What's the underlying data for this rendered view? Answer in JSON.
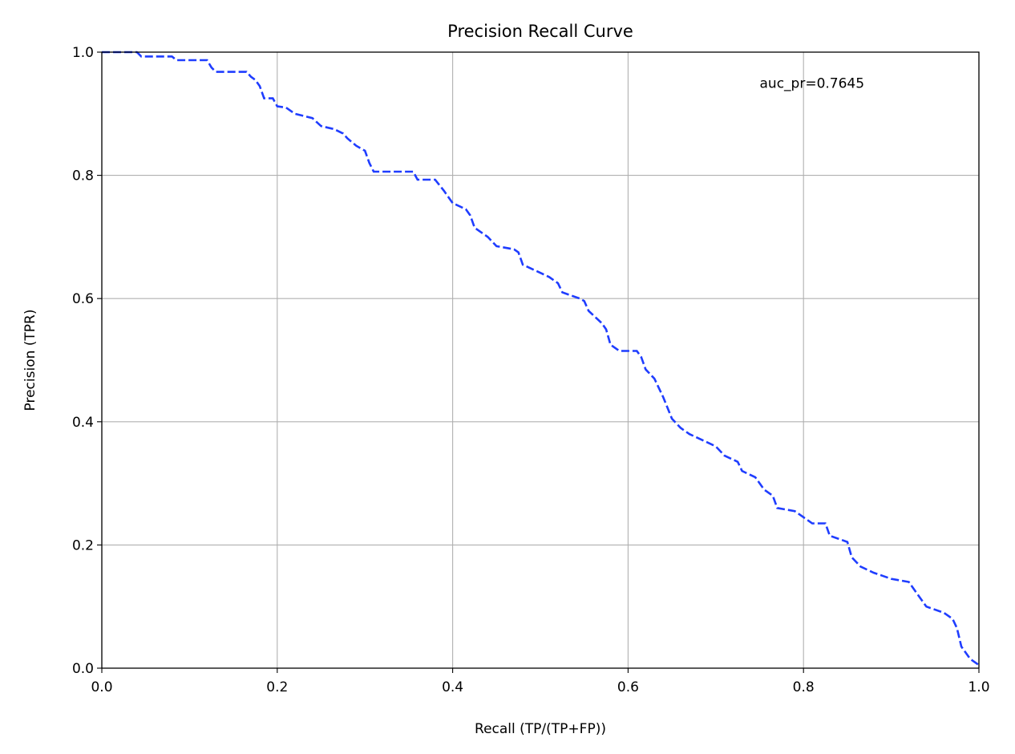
{
  "chart_data": {
    "type": "line",
    "title": "Precision Recall Curve",
    "xlabel": "Recall (TP/(TP+FP))",
    "ylabel": "Precision (TPR)",
    "xlim": [
      0,
      1
    ],
    "ylim": [
      0,
      1
    ],
    "grid": true,
    "xticks": [
      "0.0",
      "0.2",
      "0.4",
      "0.6",
      "0.8",
      "1.0"
    ],
    "yticks": [
      "0.0",
      "0.2",
      "0.4",
      "0.6",
      "0.8",
      "1.0"
    ],
    "annotation": {
      "text": "auc_pr=0.7645",
      "x": 0.75,
      "y": 0.95
    },
    "series": [
      {
        "color": "#1f3dff",
        "style": "dashed",
        "x": [
          0,
          0.04,
          0.045,
          0.08,
          0.085,
          0.12,
          0.125,
          0.13,
          0.165,
          0.17,
          0.175,
          0.18,
          0.185,
          0.195,
          0.2,
          0.21,
          0.22,
          0.24,
          0.25,
          0.265,
          0.275,
          0.28,
          0.29,
          0.3,
          0.305,
          0.31,
          0.355,
          0.36,
          0.38,
          0.39,
          0.4,
          0.415,
          0.42,
          0.425,
          0.44,
          0.45,
          0.47,
          0.475,
          0.48,
          0.495,
          0.51,
          0.52,
          0.525,
          0.545,
          0.55,
          0.555,
          0.57,
          0.575,
          0.58,
          0.59,
          0.61,
          0.615,
          0.62,
          0.63,
          0.64,
          0.65,
          0.66,
          0.67,
          0.685,
          0.7,
          0.71,
          0.725,
          0.73,
          0.745,
          0.755,
          0.765,
          0.77,
          0.79,
          0.8,
          0.81,
          0.825,
          0.83,
          0.85,
          0.855,
          0.865,
          0.88,
          0.89,
          0.9,
          0.92,
          0.93,
          0.94,
          0.96,
          0.97,
          0.975,
          0.98,
          0.99,
          1.0
        ],
        "y": [
          1.0,
          1.0,
          0.993,
          0.993,
          0.987,
          0.987,
          0.975,
          0.968,
          0.968,
          0.96,
          0.955,
          0.945,
          0.925,
          0.925,
          0.912,
          0.91,
          0.9,
          0.893,
          0.88,
          0.875,
          0.868,
          0.86,
          0.848,
          0.84,
          0.82,
          0.806,
          0.806,
          0.793,
          0.793,
          0.775,
          0.755,
          0.745,
          0.735,
          0.715,
          0.7,
          0.685,
          0.68,
          0.675,
          0.655,
          0.645,
          0.635,
          0.625,
          0.61,
          0.6,
          0.596,
          0.58,
          0.56,
          0.55,
          0.525,
          0.515,
          0.515,
          0.505,
          0.485,
          0.47,
          0.44,
          0.405,
          0.39,
          0.38,
          0.37,
          0.36,
          0.345,
          0.335,
          0.32,
          0.31,
          0.29,
          0.28,
          0.26,
          0.255,
          0.245,
          0.235,
          0.235,
          0.215,
          0.205,
          0.18,
          0.165,
          0.155,
          0.15,
          0.145,
          0.14,
          0.12,
          0.1,
          0.09,
          0.08,
          0.065,
          0.035,
          0.015,
          0.005
        ]
      }
    ]
  }
}
